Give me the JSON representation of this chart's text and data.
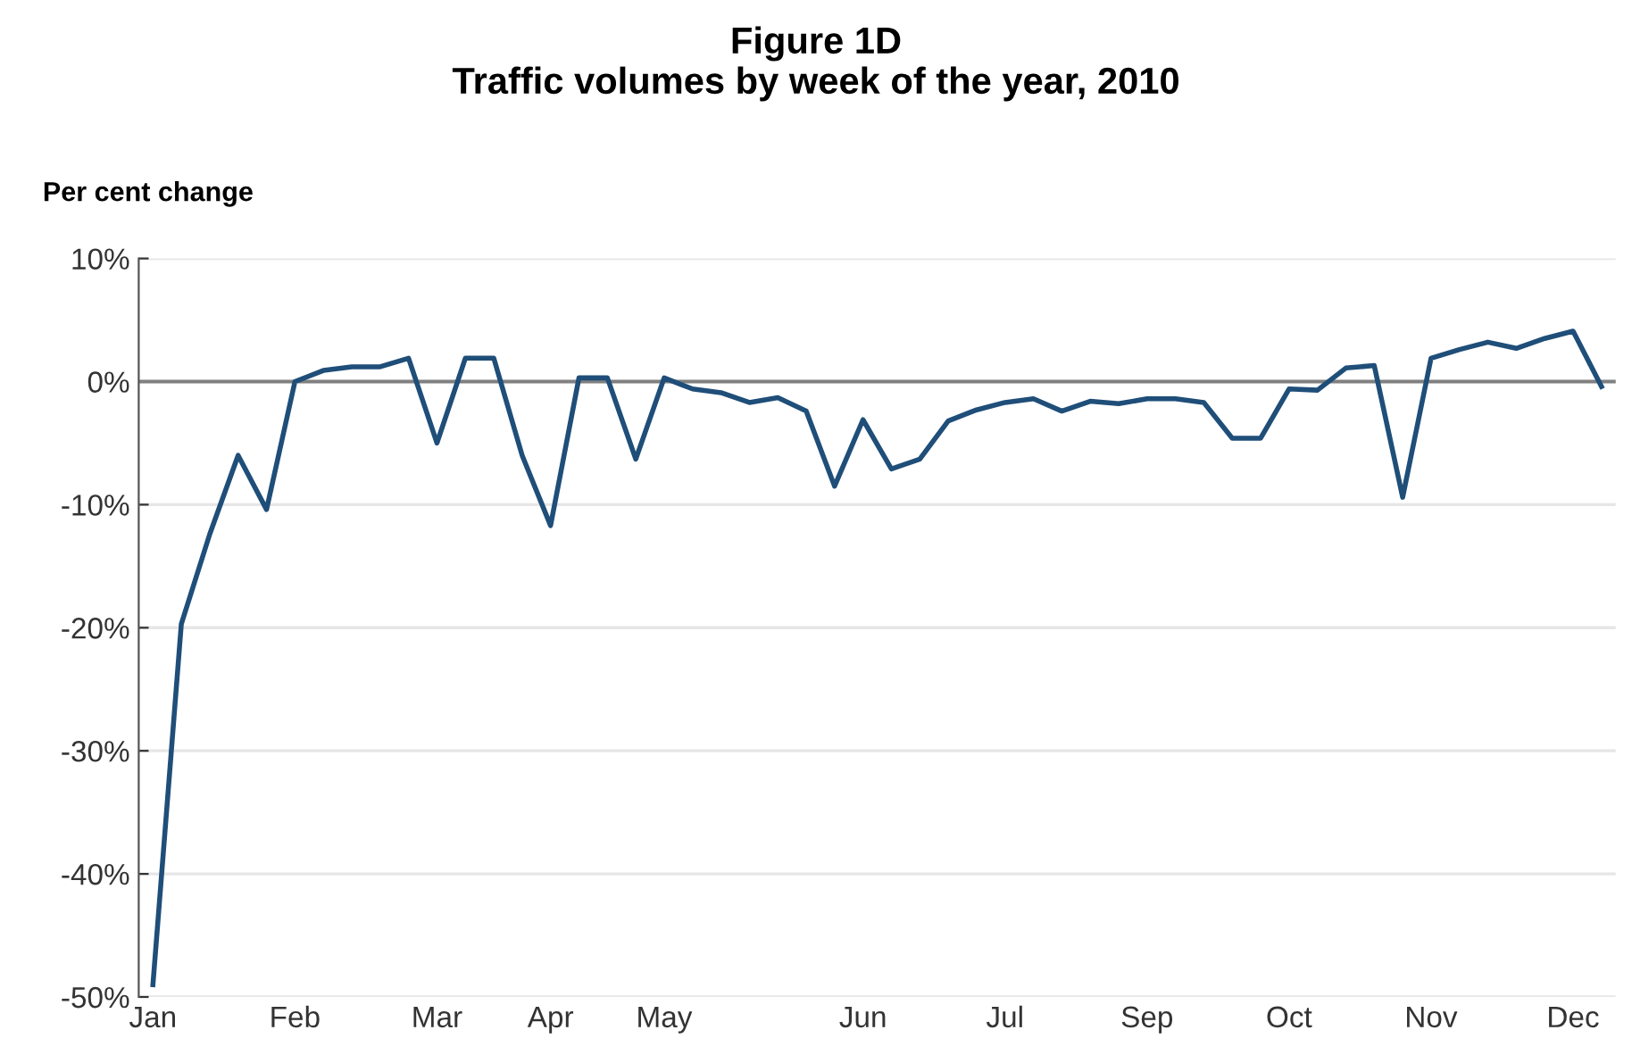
{
  "chart_data": {
    "type": "line",
    "title": "Figure 1D\nTraffic volumes by week of the year, 2010",
    "ylabel": "Per cent change",
    "categories": [
      "Jan",
      null,
      null,
      null,
      null,
      "Feb",
      null,
      null,
      null,
      null,
      "Mar",
      null,
      null,
      null,
      "Apr",
      null,
      null,
      null,
      "May",
      null,
      null,
      null,
      null,
      null,
      null,
      "Jun",
      null,
      null,
      null,
      null,
      "Jul",
      null,
      null,
      null,
      null,
      "Sep",
      null,
      null,
      null,
      null,
      "Oct",
      null,
      null,
      null,
      null,
      "Nov",
      null,
      null,
      null,
      null,
      "Dec",
      null
    ],
    "series": [
      {
        "color": "#1f4e79",
        "values": [
          -49,
          -19.7,
          -12.4,
          -6.0,
          -10.4,
          0,
          0.9,
          1.2,
          1.2,
          1.9,
          -5.0,
          1.9,
          1.9,
          -6,
          -11.7,
          0.3,
          0.3,
          -6.3,
          0.3,
          -0.6,
          -0.9,
          -1.7,
          -1.3,
          -2.4,
          -8.5,
          -3.1,
          -7.1,
          -6.3,
          -3.2,
          -2.3,
          -1.7,
          -1.4,
          -2.4,
          -1.6,
          -1.8,
          -1.4,
          -1.4,
          -1.7,
          -4.6,
          -4.6,
          -0.6,
          -0.7,
          1.1,
          1.3,
          -9.4,
          1.9,
          2.6,
          3.2,
          2.7,
          3.5,
          4.1,
          -0.4
        ]
      }
    ],
    "ylim": [
      -50,
      10
    ],
    "yticks": [
      {
        "value": -50,
        "label": "-50%"
      },
      {
        "value": -40,
        "label": "-40%"
      },
      {
        "value": -30,
        "label": "-30%"
      },
      {
        "value": -20,
        "label": "-20%"
      },
      {
        "value": -10,
        "label": "-10%"
      },
      {
        "value": 0,
        "label": "0%"
      },
      {
        "value": 10,
        "label": "10%"
      }
    ],
    "ref_lines": [
      {
        "axis": "y",
        "value": 0,
        "color": "#808080"
      }
    ],
    "grid": "y"
  }
}
